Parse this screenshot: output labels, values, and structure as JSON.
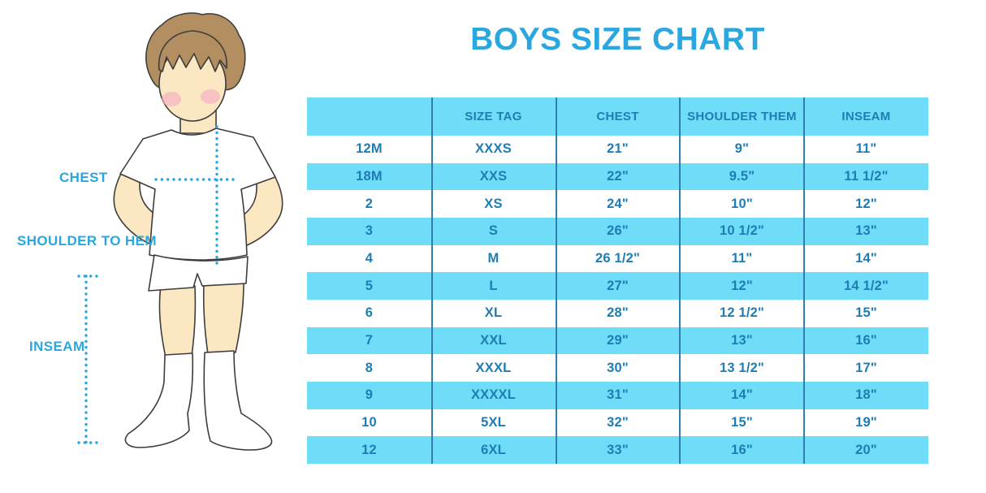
{
  "title": "BOYS SIZE CHART",
  "figure": {
    "labels": {
      "chest": "CHEST",
      "shoulder_to_hem": "SHOULDER TO HEM",
      "inseam": "INSEAM"
    }
  },
  "chart_data": {
    "type": "table",
    "title": "BOYS SIZE CHART",
    "columns": [
      "",
      "SIZE TAG",
      "CHEST",
      "SHOULDER THEM",
      "INSEAM"
    ],
    "rows": [
      [
        "12M",
        "XXXS",
        "21\"",
        "9\"",
        "11\""
      ],
      [
        "18M",
        "XXS",
        "22\"",
        "9.5\"",
        "11 1/2\""
      ],
      [
        "2",
        "XS",
        "24\"",
        "10\"",
        "12\""
      ],
      [
        "3",
        "S",
        "26\"",
        "10 1/2\"",
        "13\""
      ],
      [
        "4",
        "M",
        "26 1/2\"",
        "11\"",
        "14\""
      ],
      [
        "5",
        "L",
        "27\"",
        "12\"",
        "14 1/2\""
      ],
      [
        "6",
        "XL",
        "28\"",
        "12 1/2\"",
        "15\""
      ],
      [
        "7",
        "XXL",
        "29\"",
        "13\"",
        "16\""
      ],
      [
        "8",
        "XXXL",
        "30\"",
        "13 1/2\"",
        "17\""
      ],
      [
        "9",
        "XXXXL",
        "31\"",
        "14\"",
        "18\""
      ],
      [
        "10",
        "5XL",
        "32\"",
        "15\"",
        "19\""
      ],
      [
        "12",
        "6XL",
        "33\"",
        "16\"",
        "20\""
      ]
    ],
    "row_striping": [
      "white",
      "blue"
    ],
    "legend_position": "none",
    "grid": "column-dividers-only"
  },
  "colors": {
    "accent_blue": "#2AA7DF",
    "band_blue": "#6FDCF8",
    "table_text_blue": "#1E7DB4",
    "divider_blue": "#2E7EAE",
    "skin": "#FBE7C2",
    "hair_brown": "#B28E60",
    "blush_pink": "#F2AFC2",
    "outline": "#3D3D3D"
  }
}
